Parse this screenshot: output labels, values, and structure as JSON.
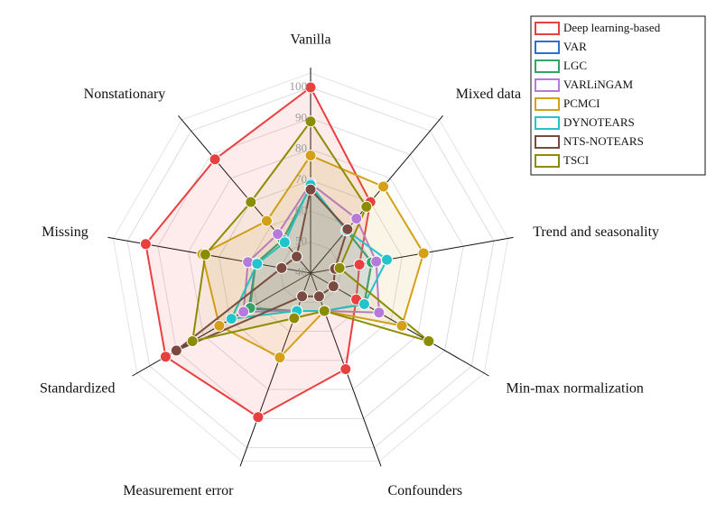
{
  "chart_data": {
    "type": "radar",
    "categories": [
      "Vanilla",
      "Mixed data",
      "Trend and seasonality",
      "Min-max normalization",
      "Confounders",
      "Measurement error",
      "Standardized",
      "Missing",
      "Nonstationary"
    ],
    "rlim": [
      40,
      100
    ],
    "rticks": [
      40,
      50,
      60,
      70,
      80,
      90,
      100
    ],
    "grid": true,
    "legend": "top-right",
    "series": [
      {
        "name": "Deep learning-based",
        "color": "#e8403f",
        "values": [
          100,
          70,
          56,
          57,
          73,
          89.5,
          94,
          94,
          88
        ]
      },
      {
        "name": "VAR",
        "color": "#2f6fd1",
        "values": [
          68,
          58,
          60,
          60,
          53,
          53,
          63,
          58,
          54
        ]
      },
      {
        "name": "LGC",
        "color": "#34a36a",
        "values": [
          68,
          58,
          60,
          60,
          53,
          53,
          62.5,
          58,
          54
        ]
      },
      {
        "name": "VARLiNGAM",
        "color": "#b67ad9",
        "values": [
          69,
          63,
          61.5,
          65.5,
          53,
          53,
          65,
          60.5,
          56.5
        ]
      },
      {
        "name": "PCMCI",
        "color": "#d4a017",
        "values": [
          78,
          76.5,
          77,
          74,
          53,
          69,
          74,
          75.5,
          62
        ]
      },
      {
        "name": "DYNOTEARS",
        "color": "#22c3cb",
        "values": [
          68.5,
          58,
          65,
          60,
          53,
          53,
          69.5,
          57.5,
          53
        ]
      },
      {
        "name": "NTS-NOTEARS",
        "color": "#7a4a40",
        "values": [
          67,
          58.5,
          48,
          48.5,
          48,
          48,
          90,
          49.5,
          47
        ]
      },
      {
        "name": "TSCI",
        "color": "#8c8c00",
        "values": [
          89,
          68,
          49.5,
          84,
          53,
          55.5,
          84,
          74.5,
          70
        ]
      }
    ]
  }
}
